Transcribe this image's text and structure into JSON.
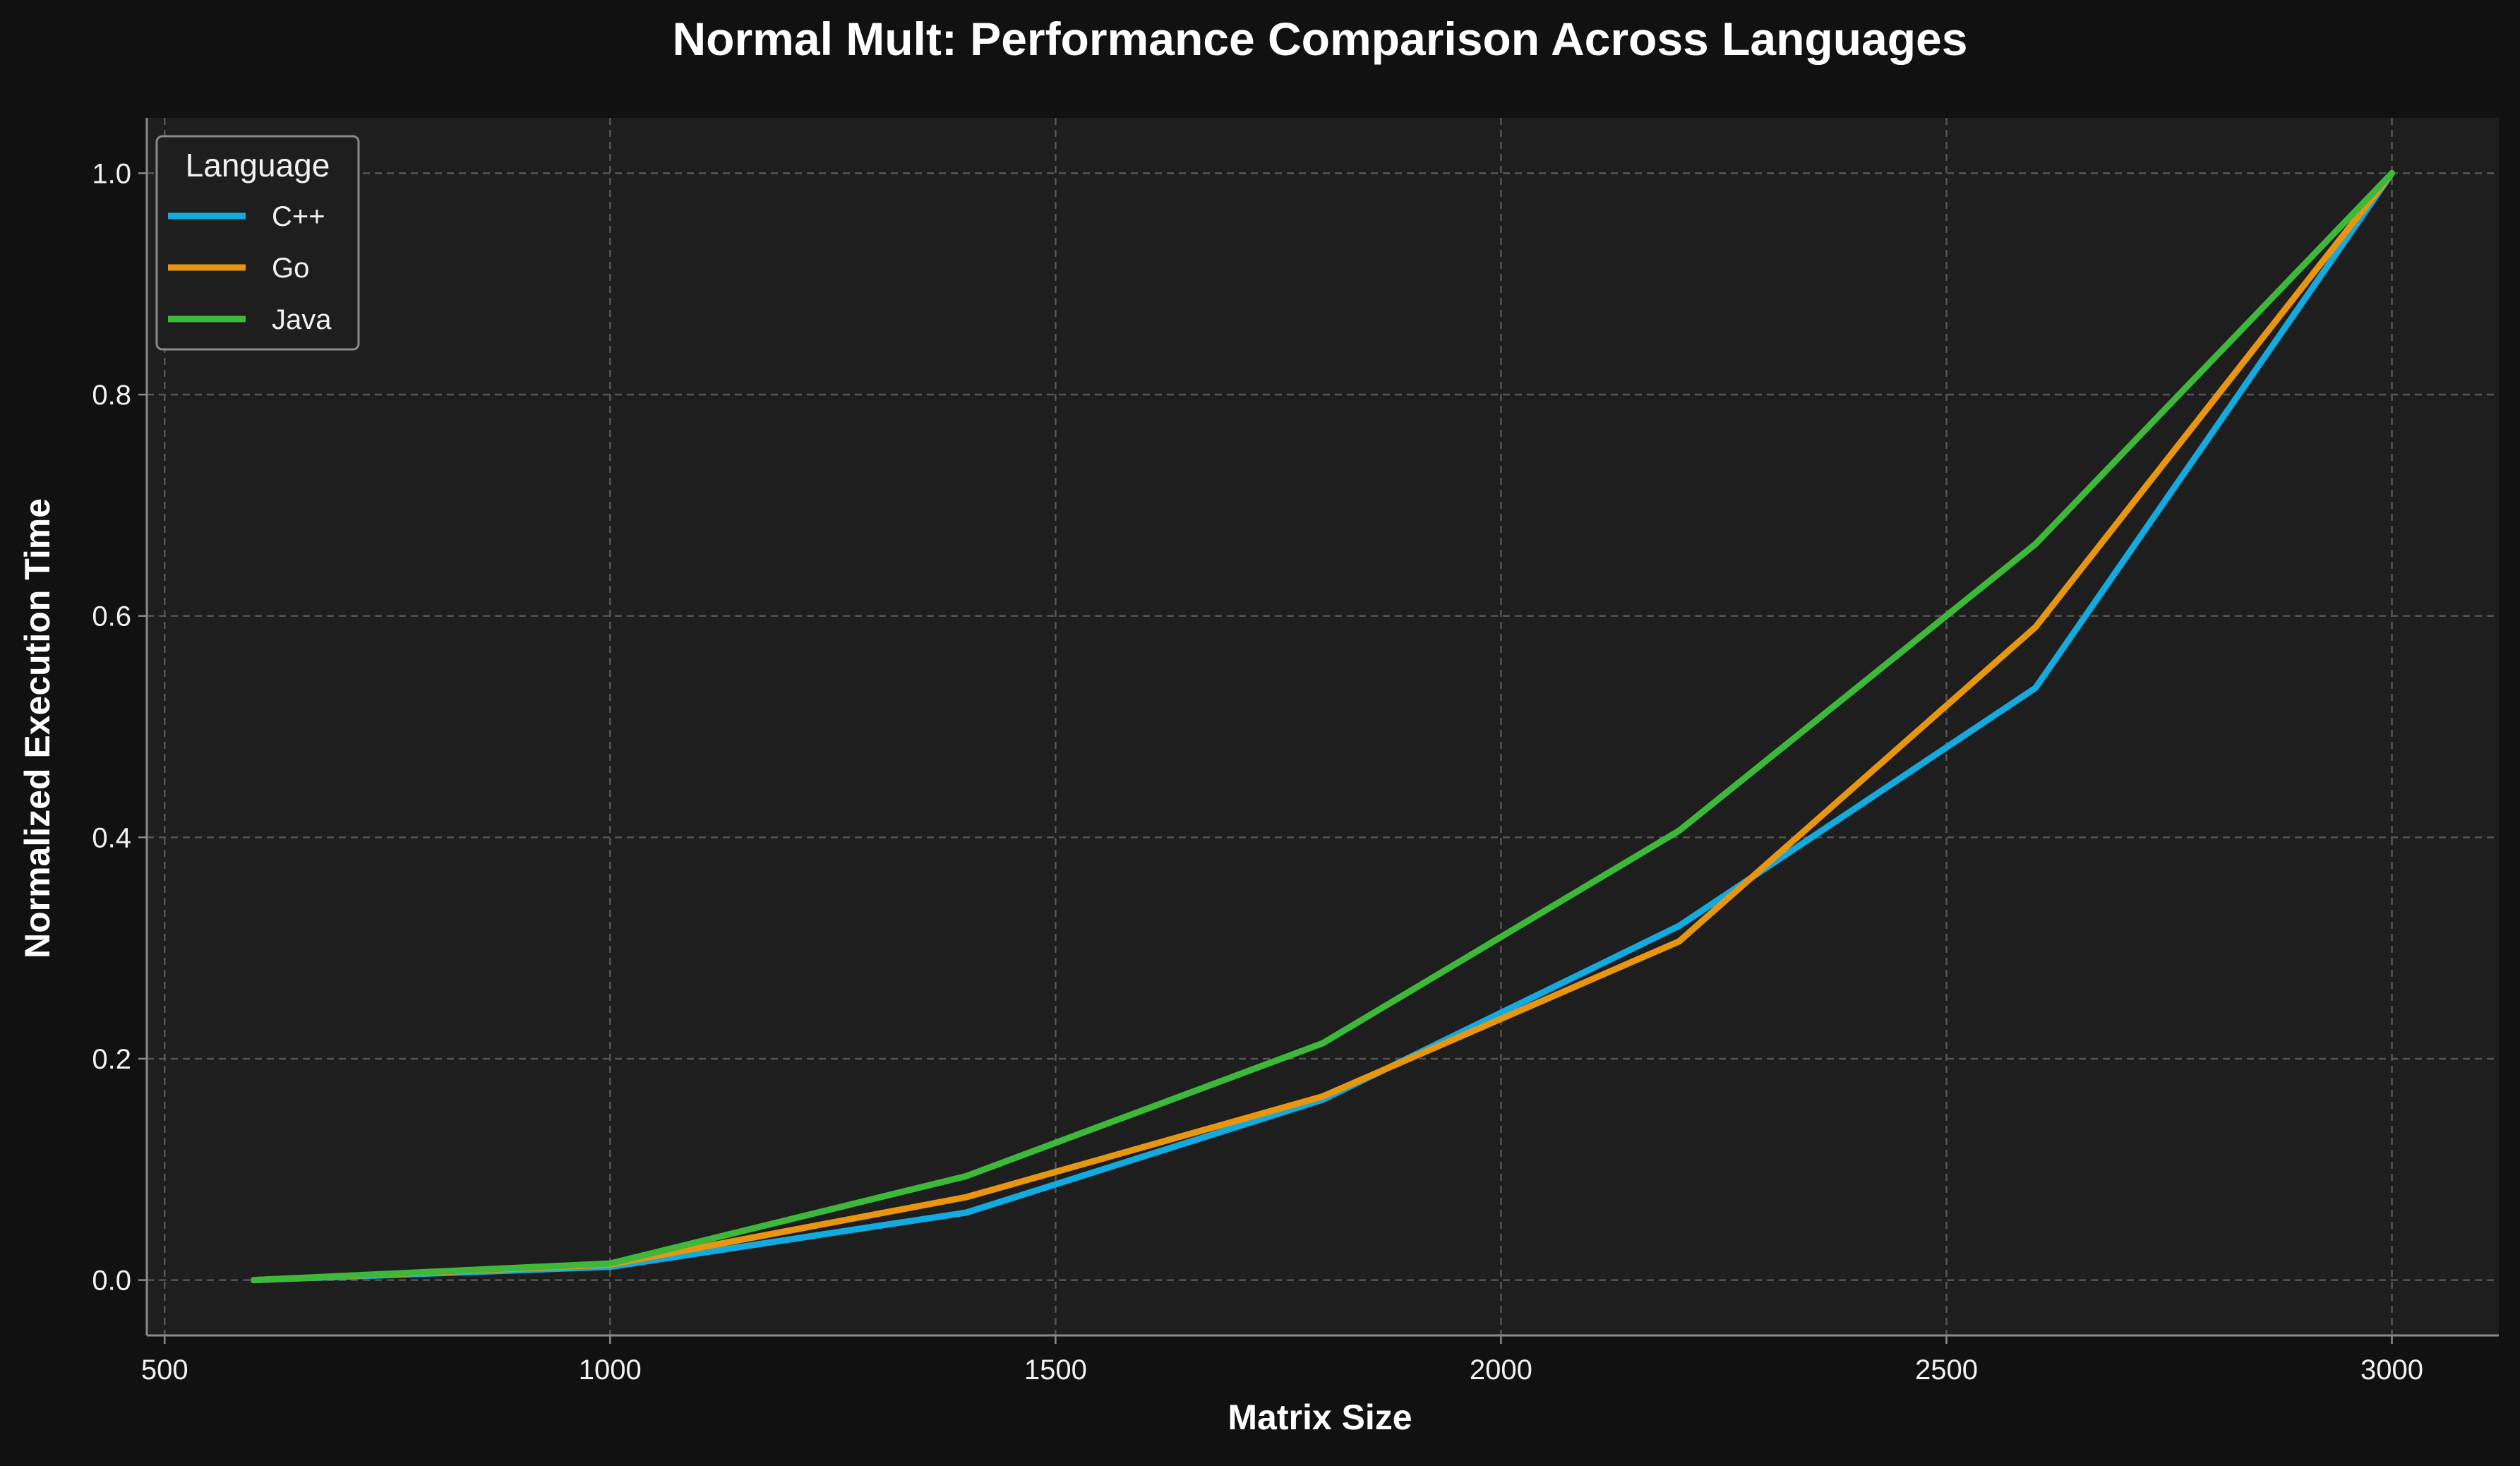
{
  "chart_data": {
    "type": "line",
    "title": "Normal Mult: Performance Comparison Across Languages",
    "xlabel": "Matrix Size",
    "ylabel": "Normalized Execution Time",
    "x": [
      600,
      1000,
      1400,
      1800,
      2200,
      2600,
      3000
    ],
    "xlim": [
      480,
      3120
    ],
    "ylim": [
      -0.05,
      1.05
    ],
    "x_ticks": [
      500,
      1000,
      1500,
      2000,
      2500,
      3000
    ],
    "y_ticks": [
      0.0,
      0.2,
      0.4,
      0.6,
      0.8,
      1.0
    ],
    "x_tick_labels": [
      "500",
      "1000",
      "1500",
      "2000",
      "2500",
      "3000"
    ],
    "y_tick_labels": [
      "0.0",
      "0.2",
      "0.4",
      "0.6",
      "0.8",
      "1.0"
    ],
    "grid": true,
    "legend_title": "Language",
    "legend_position": "top-left",
    "series": [
      {
        "name": "C++",
        "color": "#13AADF",
        "values": [
          0.0,
          0.012,
          0.061,
          0.163,
          0.32,
          0.535,
          1.0
        ]
      },
      {
        "name": "Go",
        "color": "#E8960F",
        "values": [
          0.0,
          0.014,
          0.075,
          0.166,
          0.306,
          0.59,
          1.0
        ]
      },
      {
        "name": "Java",
        "color": "#3DB83A",
        "values": [
          0.0,
          0.015,
          0.094,
          0.214,
          0.406,
          0.665,
          1.0
        ]
      }
    ],
    "colors": {
      "background": "#111111",
      "plot_background": "#1e1e1e",
      "grid": "#555555",
      "axis": "#8a8a8a"
    }
  }
}
